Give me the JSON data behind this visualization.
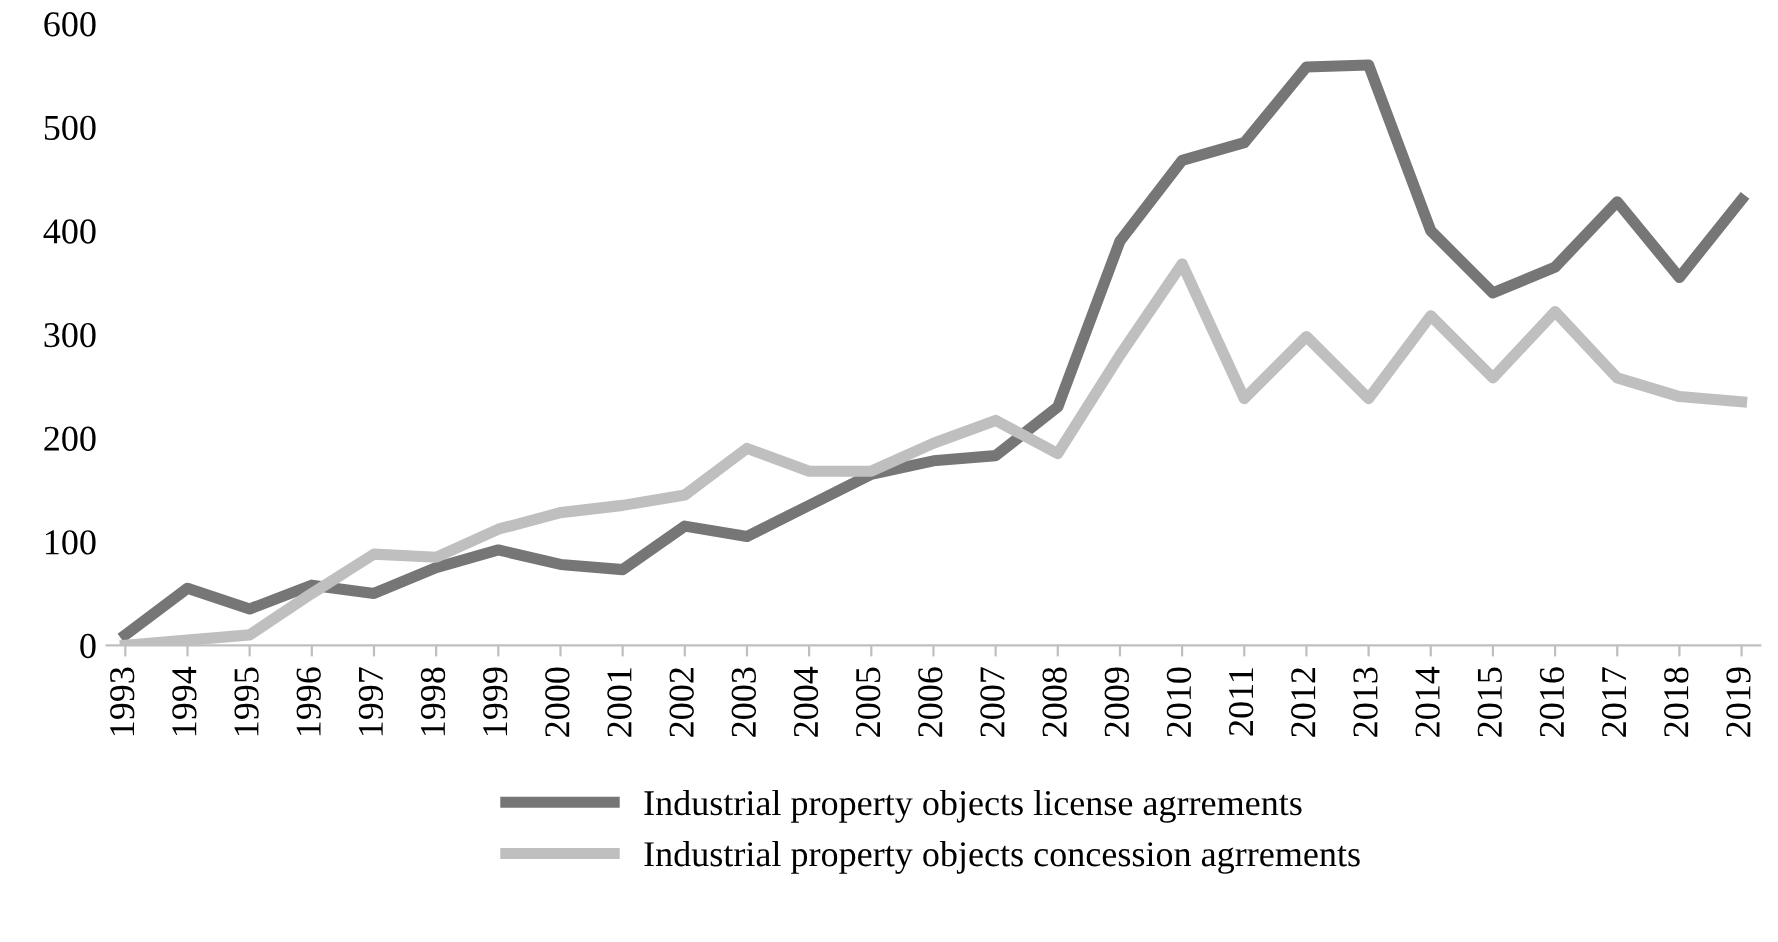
{
  "chart_data": {
    "type": "line",
    "categories": [
      "1993",
      "1994",
      "1995",
      "1996",
      "1997",
      "1998",
      "1999",
      "2000",
      "2001",
      "2002",
      "2003",
      "2004",
      "2005",
      "2006",
      "2007",
      "2008",
      "2009",
      "2010",
      "2011",
      "2012",
      "2013",
      "2014",
      "2015",
      "2016",
      "2017",
      "2018",
      "2019"
    ],
    "series": [
      {
        "name": "Industrial property objects license agrrements",
        "color": "#767676",
        "values": [
          10,
          55,
          35,
          58,
          50,
          75,
          92,
          78,
          73,
          115,
          105,
          135,
          165,
          178,
          183,
          230,
          390,
          468,
          485,
          558,
          560,
          400,
          340,
          365,
          428,
          355,
          430
        ]
      },
      {
        "name": "Industrial property objects concession agrrements",
        "color": "#bfbfbf",
        "values": [
          0,
          5,
          10,
          50,
          88,
          85,
          112,
          128,
          135,
          145,
          190,
          168,
          168,
          195,
          217,
          185,
          280,
          368,
          238,
          298,
          238,
          318,
          258,
          322,
          258,
          240,
          235
        ]
      }
    ],
    "ylim": [
      0,
      600
    ],
    "yticks": [
      0,
      100,
      200,
      300,
      400,
      500,
      600
    ],
    "grid": false,
    "legend": "bottom",
    "marker": "none",
    "line_style": "solid"
  }
}
